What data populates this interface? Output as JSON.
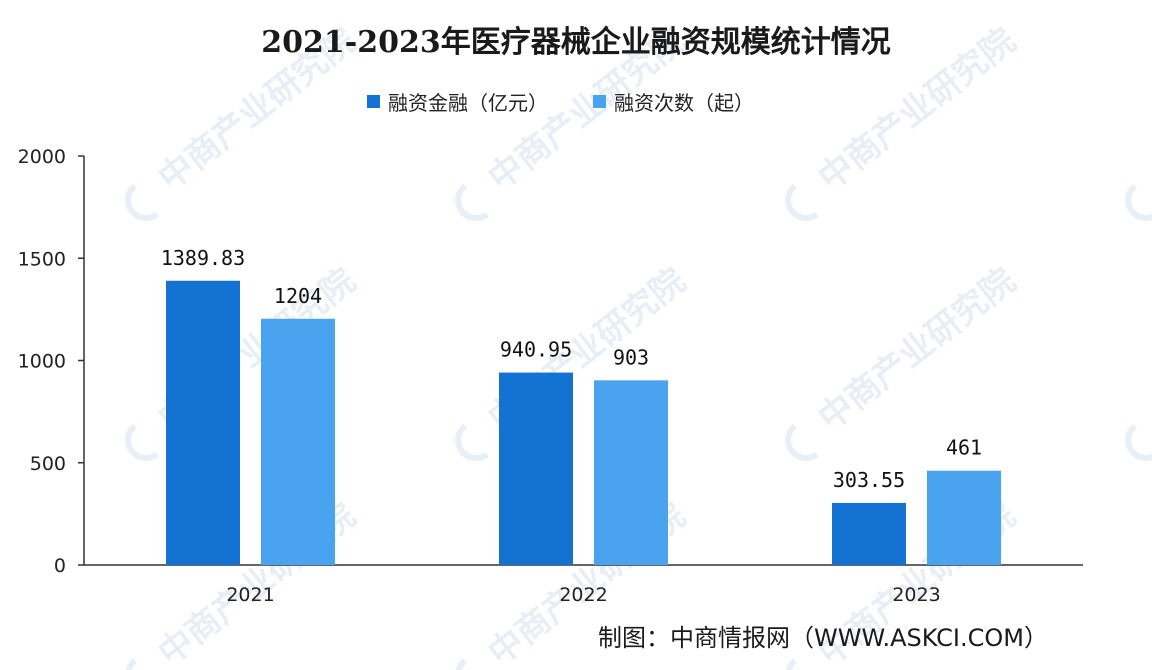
{
  "chart_data": {
    "type": "bar",
    "title": "2021-2023年医疗器械企业融资规模统计情况",
    "categories": [
      "2021",
      "2022",
      "2023"
    ],
    "series": [
      {
        "name": "融资金融（亿元）",
        "color": "#1472d2",
        "values": [
          1389.83,
          940.95,
          303.55
        ],
        "labels": [
          "1389.83",
          "940.95",
          "303.55"
        ]
      },
      {
        "name": "融资次数（起）",
        "color": "#4aa3ee",
        "values": [
          1204,
          903,
          461
        ],
        "labels": [
          "1204",
          "903",
          "461"
        ]
      }
    ],
    "yticks": [
      "0",
      "500",
      "1000",
      "1500",
      "2000"
    ],
    "ylim": [
      0,
      2000
    ],
    "grid": false,
    "legend_position": "top-center",
    "source": "制图：中商情报网（WWW.ASKCI.COM）",
    "watermark": "中商产业研究院",
    "watermark_color": "#9ab4d6"
  }
}
